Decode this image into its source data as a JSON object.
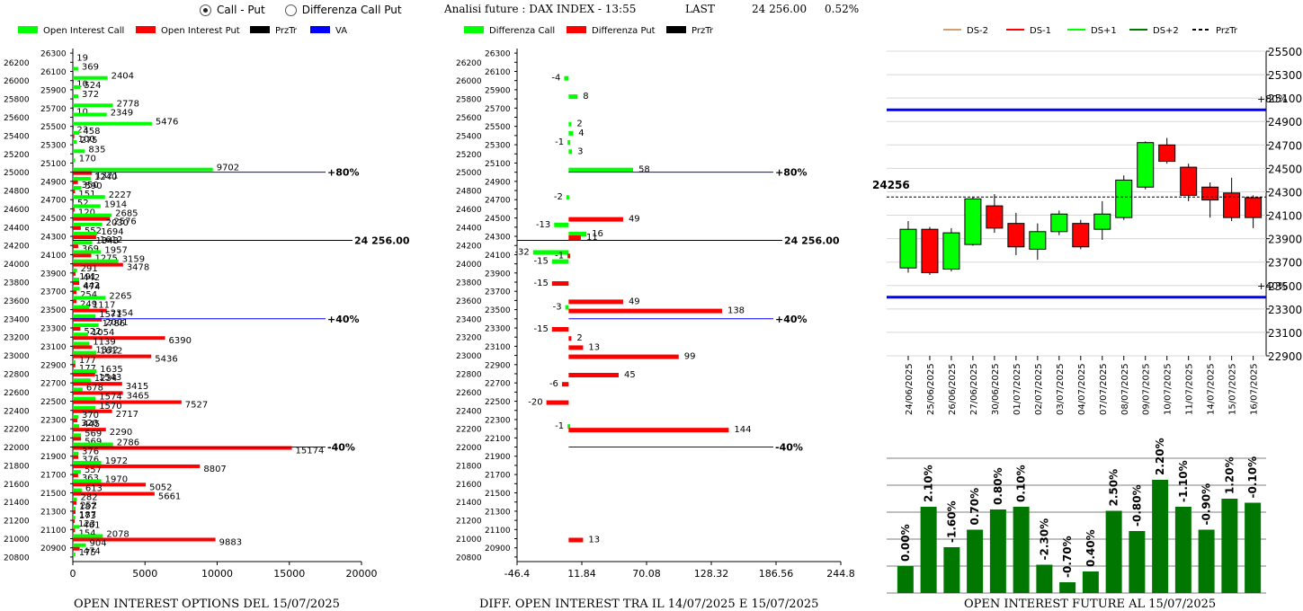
{
  "controls": {
    "radio_options": [
      {
        "label": "Call - Put",
        "selected": true
      },
      {
        "label": "Differenza Call Put",
        "selected": false
      }
    ]
  },
  "header": {
    "title": "Analisi future : DAX INDEX - 13:55",
    "last_label": "LAST",
    "last_value": "24 256.00",
    "change": "0.52%"
  },
  "bottom_titles": {
    "left": "OPEN INTEREST OPTIONS DEL 15/07/2025",
    "middle": "DIFF. OPEN INTEREST TRA IL 14/07/2025 E 15/07/2025",
    "right": "OPEN INTEREST FUTURE AL 15/07/2025"
  },
  "colors": {
    "call": "#00ff00",
    "put": "#ff0000",
    "przTr": "#000000",
    "va": "#0000ff",
    "green_dark": "#007700",
    "ds_minus2": "#d2a070",
    "ds_plus2": "#007700"
  },
  "chart_data": [
    {
      "id": "oi_options",
      "type": "bar",
      "orientation": "horizontal",
      "legend": [
        "Open Interest Call",
        "Open Interest Put",
        "PrzTr",
        "VA"
      ],
      "strikes": [
        26200,
        26100,
        26000,
        25900,
        25800,
        25700,
        25600,
        25500,
        25400,
        25300,
        25200,
        25100,
        25000,
        24900,
        24800,
        24700,
        24600,
        24500,
        24400,
        24300,
        24200,
        24100,
        24000,
        23900,
        23800,
        23700,
        23600,
        23500,
        23400,
        23300,
        23200,
        23100,
        23000,
        22900,
        22800,
        22700,
        22600,
        22500,
        22400,
        22300,
        22200,
        22100,
        22000,
        21900,
        21800,
        21700,
        21600,
        21500,
        21400,
        21300,
        21200,
        21100,
        21000,
        20900,
        20800
      ],
      "y_tick_labels": [
        "26300",
        "26200",
        "26100",
        "26000",
        "25900",
        "25800",
        "25700",
        "25600",
        "25500",
        "25400",
        "25300",
        "25200",
        "25100",
        "25000",
        "24900",
        "24800",
        "24700",
        "24600",
        "24500",
        "24400",
        "24300",
        "24200",
        "24100",
        "24000",
        "23900",
        "23800",
        "23700",
        "23600",
        "23500",
        "23400",
        "23300",
        "23200",
        "23100",
        "23000",
        "22900",
        "22800",
        "22700",
        "22600",
        "22500",
        "22400",
        "22300",
        "22200",
        "22100",
        "22000",
        "21900",
        "21800",
        "21700",
        "21600",
        "21500",
        "21400",
        "21300",
        "21200",
        "21100",
        "21000",
        "20900",
        "20800"
      ],
      "calls": [
        19,
        369,
        2404,
        524,
        372,
        2778,
        2349,
        5476,
        458,
        275,
        835,
        170,
        9702,
        1240,
        590,
        2227,
        1914,
        2685,
        2030,
        1694,
        1343,
        1957,
        3159,
        291,
        442,
        474,
        2265,
        1117,
        1571,
        1786,
        1054,
        1139,
        1612,
        177,
        1635,
        1234,
        678,
        1574,
        1570,
        370,
        445,
        569,
        2786,
        376,
        1972,
        557,
        1970,
        613,
        282,
        187,
        173,
        461,
        2078,
        904,
        175
      ],
      "puts": [
        0,
        0,
        10,
        0,
        0,
        10,
        0,
        23,
        100,
        0,
        0,
        0,
        1321,
        350,
        151,
        52,
        120,
        2576,
        552,
        1612,
        369,
        1275,
        3478,
        191,
        442,
        254,
        249,
        2354,
        2001,
        522,
        6390,
        1332,
        5436,
        177,
        1543,
        3415,
        3465,
        7527,
        2717,
        320,
        2290,
        569,
        15174,
        376,
        8807,
        363,
        5052,
        5661,
        252,
        187,
        123,
        154,
        9883,
        474,
        0
      ],
      "call_labels": [
        "19",
        "369",
        "2404",
        "524",
        "372",
        "2778",
        "2349",
        "5476",
        "458",
        "275",
        "835",
        "170",
        "9702",
        "1240",
        "590",
        "2227",
        "1914",
        "2685",
        "2030",
        "1694",
        "1343",
        "1957",
        "3159",
        "291",
        "442",
        "474",
        "2265",
        "1117",
        "1571",
        "1786",
        "1054",
        "1139",
        "1612",
        "177",
        "1635",
        "1234",
        "678",
        "1574",
        "1570",
        "370",
        "445",
        "569",
        "2786",
        "376",
        "1972",
        "557",
        "1970",
        "613",
        "282",
        "187",
        "173",
        "461",
        "2078",
        "904",
        "175"
      ],
      "put_labels": [
        "",
        "",
        "10",
        "",
        "",
        "10",
        "",
        "23",
        "100",
        "",
        "",
        "",
        "1321",
        "350",
        "151",
        "52",
        "120",
        "2576",
        "552",
        "1612",
        "369",
        "1275",
        "3478",
        "191",
        "442",
        "254",
        "249",
        "2354",
        "2001",
        "522",
        "6390",
        "1332",
        "5436",
        "177",
        "1543",
        "3415",
        "3465",
        "7527",
        "2717",
        "320",
        "2290",
        "569",
        "15174",
        "376",
        "8807",
        "363",
        "5052",
        "5661",
        "252",
        "187",
        "123",
        "154",
        "9883",
        "474",
        ""
      ],
      "x_ticks": [
        "0",
        "5000",
        "10000",
        "15000",
        "20000"
      ],
      "xlim": [
        0,
        20000
      ],
      "ylim": [
        20750,
        26350
      ],
      "reference_lines": [
        {
          "strike": 25000,
          "label": "+80%",
          "color": "va"
        },
        {
          "strike": 24256,
          "label": "24 256.00",
          "color": "przTr"
        },
        {
          "strike": 23400,
          "label": "+40%",
          "color": "va"
        },
        {
          "strike": 22000,
          "label": "-40%",
          "color": "va"
        }
      ]
    },
    {
      "id": "oi_diff",
      "type": "bar",
      "orientation": "horizontal",
      "legend": [
        "Differenza Call",
        "Differenza Put",
        "PrzTr"
      ],
      "y_tick_labels": [
        "26300",
        "26200",
        "26100",
        "26000",
        "25900",
        "25800",
        "25700",
        "25600",
        "25500",
        "25400",
        "25300",
        "25200",
        "25100",
        "25000",
        "24900",
        "24800",
        "24700",
        "24600",
        "24500",
        "24400",
        "24300",
        "24200",
        "24100",
        "24000",
        "23900",
        "23800",
        "23700",
        "23600",
        "23500",
        "23400",
        "23300",
        "23200",
        "23100",
        "23000",
        "22900",
        "22800",
        "22700",
        "22600",
        "22500",
        "22400",
        "22300",
        "22200",
        "22100",
        "22000",
        "21900",
        "21800",
        "21700",
        "21600",
        "21500",
        "21400",
        "21300",
        "21200",
        "21100",
        "21000",
        "20900",
        "20800"
      ],
      "call_diff": [
        {
          "strike": 26000,
          "value": -4
        },
        {
          "strike": 25800,
          "value": 8
        },
        {
          "strike": 25500,
          "value": 2
        },
        {
          "strike": 25400,
          "value": 4
        },
        {
          "strike": 25300,
          "value": -1
        },
        {
          "strike": 25200,
          "value": 3
        },
        {
          "strike": 25000,
          "value": 58
        },
        {
          "strike": 24700,
          "value": -2
        },
        {
          "strike": 24400,
          "value": -13
        },
        {
          "strike": 24300,
          "value": 16
        },
        {
          "strike": 24100,
          "value": -32
        },
        {
          "strike": 24000,
          "value": -15
        },
        {
          "strike": 23500,
          "value": -3
        },
        {
          "strike": 22200,
          "value": -1
        }
      ],
      "put_diff": [
        {
          "strike": 24500,
          "value": 49
        },
        {
          "strike": 24300,
          "value": 11
        },
        {
          "strike": 24100,
          "value": -1
        },
        {
          "strike": 23800,
          "value": -15
        },
        {
          "strike": 23600,
          "value": 49
        },
        {
          "strike": 23500,
          "value": 138
        },
        {
          "strike": 23300,
          "value": -15
        },
        {
          "strike": 23200,
          "value": 2
        },
        {
          "strike": 23100,
          "value": 13
        },
        {
          "strike": 23000,
          "value": 99
        },
        {
          "strike": 22800,
          "value": 45
        },
        {
          "strike": 22700,
          "value": -6
        },
        {
          "strike": 22500,
          "value": -20
        },
        {
          "strike": 22200,
          "value": 144
        },
        {
          "strike": 21000,
          "value": 13
        }
      ],
      "x_ticks": [
        "-46.4",
        "11.84",
        "70.08",
        "128.32",
        "186.56",
        "244.8"
      ],
      "xlim": [
        -46.4,
        244.8
      ],
      "ylim": [
        20750,
        26350
      ],
      "reference_lines": [
        {
          "strike": 25000,
          "label": "+80%",
          "color": "va"
        },
        {
          "strike": 24256,
          "label": "24 256.00",
          "color": "przTr"
        },
        {
          "strike": 23400,
          "label": "+40%",
          "color": "va"
        },
        {
          "strike": 22000,
          "label": "-40%",
          "color": "va"
        }
      ]
    },
    {
      "id": "future_candles",
      "type": "candlestick",
      "legend": [
        "DS-2",
        "DS-1",
        "DS+1",
        "DS+2",
        "PrzTr"
      ],
      "dates": [
        "24/06/2025",
        "25/06/2025",
        "26/06/2025",
        "27/06/2025",
        "30/06/2025",
        "01/07/2025",
        "02/07/2025",
        "03/07/2025",
        "04/07/2025",
        "07/07/2025",
        "08/07/2025",
        "09/07/2025",
        "10/07/2025",
        "11/07/2025",
        "14/07/2025",
        "15/07/2025",
        "16/07/2025"
      ],
      "open": [
        23650,
        23980,
        23640,
        23850,
        24180,
        24030,
        23810,
        23960,
        24030,
        23980,
        24080,
        24340,
        24700,
        24510,
        24340,
        24290,
        24250
      ],
      "close": [
        23980,
        23610,
        23950,
        24240,
        23990,
        23830,
        23960,
        24110,
        23830,
        24110,
        24400,
        24720,
        24560,
        24270,
        24230,
        24080,
        24080
      ],
      "high": [
        24050,
        24000,
        23990,
        24260,
        24280,
        24120,
        24030,
        24140,
        24060,
        24220,
        24440,
        24730,
        24760,
        24540,
        24380,
        24420,
        24270
      ],
      "low": [
        23610,
        23590,
        23620,
        23840,
        23950,
        23760,
        23720,
        23930,
        23810,
        23890,
        24060,
        24320,
        24540,
        24220,
        24080,
        24050,
        23990
      ],
      "przTr": 24256,
      "przTr_label": "24256",
      "upper_level_label": "+80%",
      "upper_level": 25000,
      "lower_level_label": "+40%",
      "lower_level": 23400,
      "y_ticks": [
        "25500",
        "25300",
        "25100",
        "24900",
        "24700",
        "24500",
        "24300",
        "24100",
        "23900",
        "23700",
        "23500",
        "23300",
        "23100",
        "22900"
      ],
      "ylim": [
        22900,
        25500
      ]
    },
    {
      "id": "future_oi_change",
      "type": "bar",
      "labels": [
        "0.00%",
        "2.10%",
        "-1.60%",
        "0.70%",
        "0.80%",
        "0.10%",
        "-2.30%",
        "-0.70%",
        "0.40%",
        "2.50%",
        "-0.80%",
        "2.20%",
        "-1.10%",
        "-0.90%",
        "1.20%",
        "-0.10%"
      ],
      "values": [
        1.0,
        3.2,
        1.7,
        2.35,
        3.1,
        3.2,
        1.05,
        0.4,
        0.8,
        3.05,
        2.3,
        4.2,
        3.2,
        2.35,
        3.5,
        3.35
      ],
      "ylim": [
        0,
        5
      ]
    }
  ]
}
